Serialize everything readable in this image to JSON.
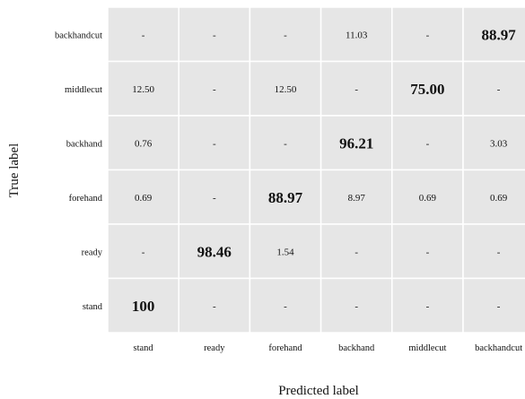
{
  "chart_data": {
    "type": "heatmap",
    "title": "",
    "xlabel": "Predicted label",
    "ylabel": "True label",
    "x_categories": [
      "stand",
      "ready",
      "forehand",
      "backhand",
      "middlecut",
      "backhandcut"
    ],
    "y_categories": [
      "backhandcut",
      "middlecut",
      "backhand",
      "forehand",
      "ready",
      "stand"
    ],
    "values": [
      [
        "-",
        "-",
        "-",
        "11.03",
        "-",
        "88.97"
      ],
      [
        "12.50",
        "-",
        "12.50",
        "-",
        "75.00",
        "-"
      ],
      [
        "0.76",
        "-",
        "-",
        "96.21",
        "-",
        "3.03"
      ],
      [
        "0.69",
        "-",
        "88.97",
        "8.97",
        "0.69",
        "0.69"
      ],
      [
        "-",
        "98.46",
        "1.54",
        "-",
        "-",
        "-"
      ],
      [
        "100",
        "-",
        "-",
        "-",
        "-",
        "-"
      ]
    ],
    "highlighted": [
      [
        0,
        5
      ],
      [
        1,
        4
      ],
      [
        2,
        3
      ],
      [
        3,
        2
      ],
      [
        4,
        1
      ],
      [
        5,
        0
      ]
    ],
    "grid": true,
    "cell_color": "#e6e6e6",
    "gridline_color": "#ffffff"
  }
}
